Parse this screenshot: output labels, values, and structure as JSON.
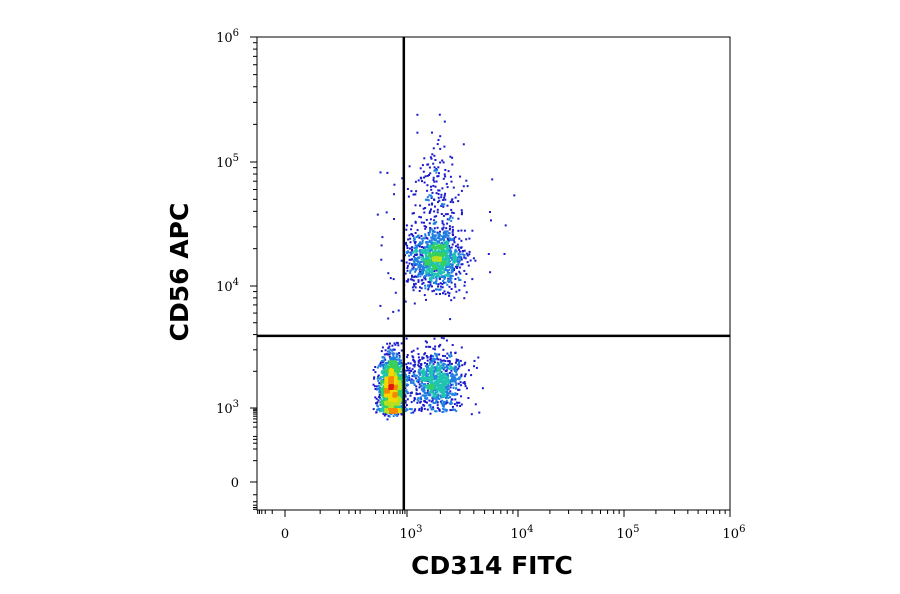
{
  "chart_data": {
    "type": "scatter",
    "style": "flow-cytometry density dot plot",
    "xlabel": "CD314 FITC",
    "ylabel": "CD56 APC",
    "x_scale": "biexponential",
    "y_scale": "biexponential",
    "xlim": [
      -100,
      1000000
    ],
    "ylim": [
      -100,
      1000000
    ],
    "x_ticks": [
      {
        "value": 0,
        "base": "0",
        "exp": ""
      },
      {
        "value": 1000,
        "base": "10",
        "exp": "3"
      },
      {
        "value": 10000,
        "base": "10",
        "exp": "4"
      },
      {
        "value": 100000,
        "base": "10",
        "exp": "5"
      },
      {
        "value": 1000000,
        "base": "10",
        "exp": "6"
      }
    ],
    "y_ticks": [
      {
        "value": 0,
        "base": "0",
        "exp": ""
      },
      {
        "value": 1000,
        "base": "10",
        "exp": "3"
      },
      {
        "value": 10000,
        "base": "10",
        "exp": "4"
      },
      {
        "value": 100000,
        "base": "10",
        "exp": "5"
      },
      {
        "value": 1000000,
        "base": "10",
        "exp": "6"
      }
    ],
    "gates": {
      "x_threshold": 850,
      "y_threshold": 3900
    },
    "populations": [
      {
        "x_center": 450,
        "y_center": 1450,
        "count": 1900,
        "peak_color": "red"
      },
      {
        "x_center": 1800,
        "y_center": 1700,
        "count": 900,
        "peak_color": "green"
      },
      {
        "x_center": 1800,
        "y_center": 17000,
        "count": 1200,
        "peak_color": "green"
      },
      {
        "x_center": 1800,
        "y_center": 60000,
        "count": 180,
        "peak_color": "blue"
      }
    ],
    "density_colors": [
      "#1a1acc",
      "#1f7fe0",
      "#1ec4b0",
      "#38d05a",
      "#b8e020",
      "#f5d800",
      "#f58a00",
      "#e01810"
    ],
    "grid": false,
    "legend": "none"
  }
}
